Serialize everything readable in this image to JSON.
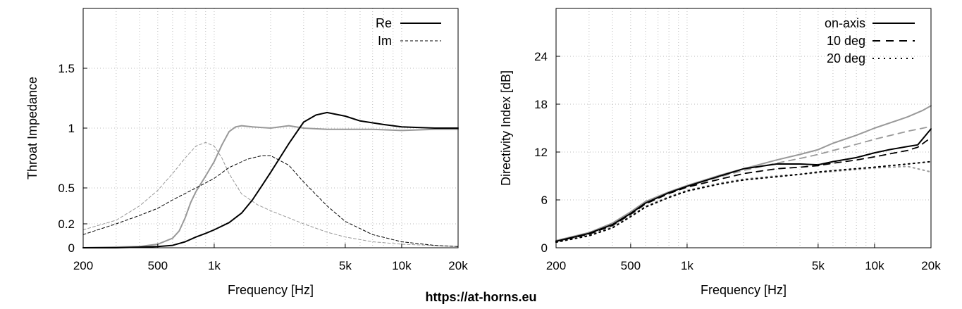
{
  "site_label": "https://at-horns.eu",
  "chart_data": [
    {
      "type": "line",
      "xlabel": "Frequency [Hz]",
      "ylabel": "Throat Impedance",
      "xscale": "log",
      "xlim": [
        200,
        20000
      ],
      "ylim": [
        0,
        2.0
      ],
      "grid": true,
      "legend_position": "top-right",
      "x_ticks": [
        {
          "v": 200,
          "label": "200"
        },
        {
          "v": 500,
          "label": "500"
        },
        {
          "v": 1000,
          "label": "1k"
        },
        {
          "v": 5000,
          "label": "5k"
        },
        {
          "v": 10000,
          "label": "10k"
        },
        {
          "v": 20000,
          "label": "20k"
        }
      ],
      "y_ticks": [
        {
          "v": 0,
          "label": "0"
        },
        {
          "v": 0.2,
          "label": "0.2"
        },
        {
          "v": 0.5,
          "label": "0.5"
        },
        {
          "v": 1,
          "label": "1"
        },
        {
          "v": 1.5,
          "label": "1.5"
        }
      ],
      "series": [
        {
          "name": "Re",
          "color": "#000000",
          "dash": "solid",
          "legend": true,
          "x": [
            200,
            300,
            400,
            500,
            600,
            700,
            800,
            900,
            1000,
            1200,
            1400,
            1600,
            1800,
            2000,
            2500,
            3000,
            3500,
            4000,
            5000,
            6000,
            8000,
            10000,
            15000,
            20000
          ],
          "y": [
            0,
            0,
            0.005,
            0.01,
            0.02,
            0.05,
            0.09,
            0.12,
            0.15,
            0.21,
            0.29,
            0.4,
            0.52,
            0.63,
            0.87,
            1.05,
            1.11,
            1.13,
            1.1,
            1.06,
            1.03,
            1.01,
            1.0,
            1.0
          ]
        },
        {
          "name": "Im",
          "color": "#000000",
          "dash": "dashed",
          "legend": true,
          "x": [
            200,
            300,
            400,
            500,
            600,
            800,
            1000,
            1200,
            1500,
            1800,
            2000,
            2500,
            3000,
            4000,
            5000,
            7000,
            10000,
            15000,
            20000
          ],
          "y": [
            0.11,
            0.2,
            0.27,
            0.33,
            0.4,
            0.5,
            0.58,
            0.67,
            0.74,
            0.77,
            0.77,
            0.69,
            0.55,
            0.35,
            0.22,
            0.11,
            0.05,
            0.02,
            0.01
          ]
        },
        {
          "name": "",
          "color": "#999999",
          "dash": "solid",
          "legend": false,
          "x": [
            200,
            400,
            500,
            600,
            650,
            700,
            750,
            800,
            900,
            1000,
            1100,
            1200,
            1300,
            1400,
            1600,
            2000,
            2500,
            3000,
            4000,
            5000,
            7000,
            10000,
            15000,
            20000
          ],
          "y": [
            0,
            0.01,
            0.03,
            0.08,
            0.14,
            0.25,
            0.38,
            0.47,
            0.6,
            0.72,
            0.86,
            0.97,
            1.01,
            1.02,
            1.01,
            1.0,
            1.02,
            1.0,
            0.99,
            0.99,
            0.99,
            0.98,
            0.99,
            0.99
          ]
        },
        {
          "name": "",
          "color": "#999999",
          "dash": "dashed",
          "legend": false,
          "x": [
            200,
            300,
            400,
            500,
            600,
            700,
            800,
            900,
            1000,
            1100,
            1200,
            1400,
            1700,
            2000,
            3000,
            4000,
            5000,
            7000,
            10000,
            20000
          ],
          "y": [
            0.15,
            0.23,
            0.35,
            0.48,
            0.62,
            0.75,
            0.85,
            0.88,
            0.85,
            0.75,
            0.62,
            0.45,
            0.36,
            0.31,
            0.2,
            0.13,
            0.09,
            0.05,
            0.03,
            0.01
          ]
        }
      ],
      "legend_labels": {
        "re": "Re",
        "im": "Im"
      }
    },
    {
      "type": "line",
      "xlabel": "Frequency [Hz]",
      "ylabel": "Directivity Index [dB]",
      "xscale": "log",
      "xlim": [
        200,
        20000
      ],
      "ylim": [
        0,
        30
      ],
      "grid": true,
      "legend_position": "top-right",
      "x_ticks": [
        {
          "v": 200,
          "label": "200"
        },
        {
          "v": 500,
          "label": "500"
        },
        {
          "v": 1000,
          "label": "1k"
        },
        {
          "v": 5000,
          "label": "5k"
        },
        {
          "v": 10000,
          "label": "10k"
        },
        {
          "v": 20000,
          "label": "20k"
        }
      ],
      "y_ticks": [
        {
          "v": 0,
          "label": "0"
        },
        {
          "v": 6,
          "label": "6"
        },
        {
          "v": 12,
          "label": "12"
        },
        {
          "v": 18,
          "label": "18"
        },
        {
          "v": 24,
          "label": "24"
        }
      ],
      "series": [
        {
          "name": "on-axis",
          "color": "#000000",
          "dash": "solid",
          "legend": true,
          "x": [
            200,
            300,
            400,
            500,
            600,
            800,
            1000,
            1500,
            2000,
            3000,
            4000,
            5000,
            6000,
            8000,
            10000,
            12000,
            15000,
            17000,
            20000
          ],
          "y": [
            0.8,
            1.8,
            2.9,
            4.3,
            5.6,
            6.9,
            7.7,
            9.0,
            9.9,
            10.5,
            10.5,
            10.4,
            10.8,
            11.3,
            11.9,
            12.3,
            12.7,
            12.9,
            14.9
          ]
        },
        {
          "name": "10 deg",
          "color": "#000000",
          "dash": "dashed",
          "legend": true,
          "x": [
            200,
            300,
            400,
            500,
            600,
            800,
            1000,
            1500,
            2000,
            3000,
            4000,
            5000,
            6000,
            8000,
            10000,
            15000,
            17000,
            20000
          ],
          "y": [
            0.8,
            1.7,
            2.8,
            4.2,
            5.5,
            6.8,
            7.6,
            8.6,
            9.3,
            9.9,
            10.1,
            10.3,
            10.6,
            11.0,
            11.4,
            12.2,
            12.6,
            13.8
          ]
        },
        {
          "name": "20 deg",
          "color": "#000000",
          "dash": "dotted",
          "legend": true,
          "x": [
            200,
            300,
            400,
            500,
            600,
            800,
            1000,
            1500,
            2000,
            3000,
            4000,
            5000,
            7000,
            10000,
            15000,
            20000
          ],
          "y": [
            0.7,
            1.5,
            2.5,
            3.9,
            5.1,
            6.3,
            7.1,
            8.0,
            8.5,
            8.9,
            9.2,
            9.5,
            9.8,
            10.1,
            10.5,
            10.8
          ]
        },
        {
          "name": "",
          "color": "#999999",
          "dash": "solid",
          "legend": false,
          "x": [
            200,
            300,
            400,
            500,
            600,
            800,
            1000,
            1500,
            2000,
            3000,
            4000,
            5000,
            6000,
            8000,
            10000,
            15000,
            18000,
            20000
          ],
          "y": [
            0.9,
            1.9,
            3.1,
            4.5,
            5.8,
            7.0,
            7.8,
            9.1,
            9.9,
            11.0,
            11.7,
            12.3,
            13.1,
            14.1,
            15.0,
            16.4,
            17.2,
            17.8
          ]
        },
        {
          "name": "",
          "color": "#999999",
          "dash": "dashed",
          "legend": false,
          "x": [
            200,
            300,
            400,
            500,
            600,
            800,
            1000,
            1500,
            2000,
            3000,
            4000,
            5000,
            7000,
            10000,
            15000,
            20000
          ],
          "y": [
            0.8,
            1.8,
            3.0,
            4.4,
            5.6,
            6.9,
            7.7,
            8.9,
            9.7,
            10.6,
            11.2,
            11.7,
            12.6,
            13.6,
            14.6,
            15.2
          ]
        },
        {
          "name": "",
          "color": "#999999",
          "dash": "dotted",
          "legend": false,
          "x": [
            200,
            300,
            400,
            500,
            600,
            800,
            1000,
            1500,
            2000,
            3000,
            5000,
            7000,
            10000,
            15000,
            20000
          ],
          "y": [
            0.7,
            1.6,
            2.6,
            4.0,
            5.2,
            6.4,
            7.2,
            8.1,
            8.6,
            9.0,
            9.4,
            9.7,
            10.0,
            10.2,
            9.5
          ]
        }
      ],
      "legend_labels": {
        "on": "on-axis",
        "d10": "10 deg",
        "d20": "20 deg"
      }
    }
  ]
}
